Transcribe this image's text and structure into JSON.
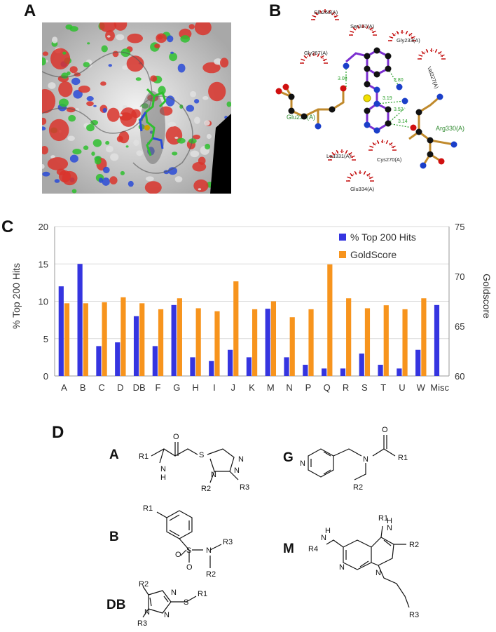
{
  "panels": {
    "a": "A",
    "b": "B",
    "c": "C",
    "d": "D"
  },
  "interaction": {
    "residues": [
      "Glu265(A)",
      "Ser237(A)",
      "Gly233(A)",
      "Gly267(A)",
      "Val327(A)",
      "Glu232(A)",
      "Arg330(A)",
      "Leu331(A)",
      "Cys270(A)",
      "Glu334(A)"
    ],
    "distances": [
      "3.08",
      "2.80",
      "3.19",
      "3.52",
      "3.14"
    ]
  },
  "colors": {
    "hits": "#3535e0",
    "gold": "#f7941d",
    "hbond": "#2aa02a",
    "residue_label": "#2f8a2f",
    "hydrophobic_arc": "#c00000"
  },
  "chart_data": {
    "type": "bar",
    "categories": [
      "A",
      "B",
      "C",
      "D",
      "DB",
      "F",
      "G",
      "H",
      "I",
      "J",
      "K",
      "M",
      "N",
      "P",
      "Q",
      "R",
      "S",
      "T",
      "U",
      "W",
      "Misc"
    ],
    "series": [
      {
        "name": "% Top 200 Hits",
        "axis": "left",
        "values": [
          12,
          15,
          4,
          4.5,
          8,
          4,
          9.5,
          2.5,
          2,
          3.5,
          2.5,
          9,
          2.5,
          1.5,
          1,
          1,
          3,
          1.5,
          1,
          3.5,
          9.5
        ]
      },
      {
        "name": "GoldScore",
        "axis": "right",
        "values": [
          67.3,
          67.3,
          67.4,
          67.9,
          67.3,
          66.7,
          67.8,
          66.8,
          66.5,
          69.5,
          66.7,
          67.5,
          65.9,
          66.7,
          71.2,
          67.8,
          66.8,
          67.1,
          66.7,
          67.8,
          null
        ]
      }
    ],
    "ylabel_left": "% Top 200 Hits",
    "ylabel_right": "Goldscore",
    "ylim_left": [
      0,
      20
    ],
    "ylim_right": [
      60,
      75
    ],
    "yticks_left": [
      "0",
      "5",
      "10",
      "15",
      "20"
    ],
    "yticks_right": [
      "60",
      "65",
      "70",
      "75"
    ],
    "grid": "horizontal",
    "legend": "top-right"
  },
  "compounds": {
    "labels": {
      "a": "A",
      "b": "B",
      "db": "DB",
      "g": "G",
      "m": "M"
    },
    "groups": {
      "r1": "R1",
      "r2": "R2",
      "r3": "R3",
      "r4": "R4"
    },
    "atoms": {
      "n": "N",
      "o": "O",
      "s": "S",
      "h": "H"
    }
  }
}
